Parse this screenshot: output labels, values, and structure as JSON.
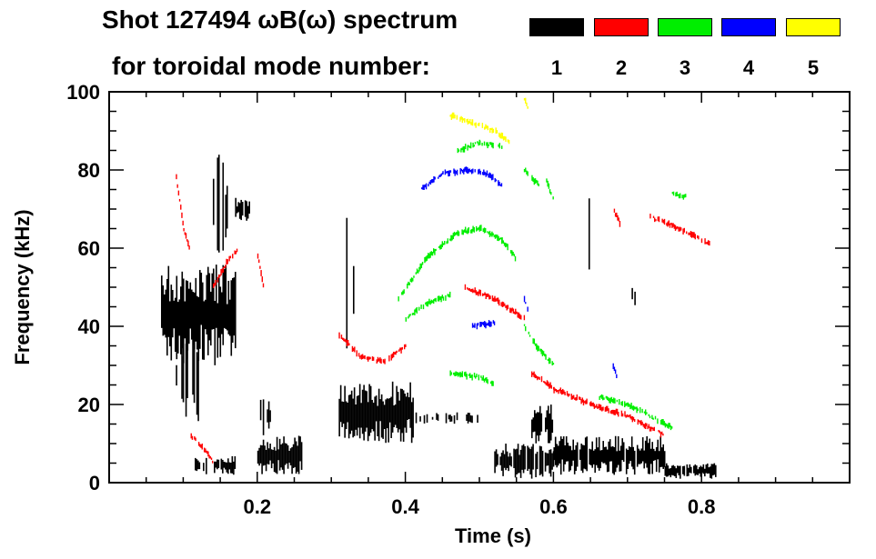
{
  "chart_data": {
    "type": "heatmap",
    "title": "Shot 127494 ωB(ω) spectrum",
    "subtitle": "for toroidal mode number:",
    "xlabel": "Time (s)",
    "ylabel": "Frequency (kHz)",
    "xlim": [
      0,
      1
    ],
    "ylim": [
      0,
      100
    ],
    "xticks": [
      0.2,
      0.4,
      0.6,
      0.8
    ],
    "xtick_labels": [
      "0.2",
      "0.4",
      "0.6",
      "0.8"
    ],
    "yticks": [
      0,
      20,
      40,
      60,
      80,
      100
    ],
    "ytick_labels": [
      "0",
      "20",
      "40",
      "60",
      "80",
      "100"
    ],
    "legend": {
      "placement": "top-right",
      "entries": [
        {
          "label": "1",
          "color": "#000000"
        },
        {
          "label": "2",
          "color": "#ff0000"
        },
        {
          "label": "3",
          "color": "#00ee00"
        },
        {
          "label": "4",
          "color": "#0000ff"
        },
        {
          "label": "5",
          "color": "#ffff00"
        }
      ]
    },
    "modes": [
      {
        "n": 1,
        "color": "#000000",
        "regions": [
          [
            0.07,
            0.17,
            30,
            56,
            0.9
          ],
          [
            0.09,
            0.13,
            15,
            40,
            0.4
          ],
          [
            0.14,
            0.16,
            58,
            84,
            0.5
          ],
          [
            0.17,
            0.19,
            67,
            73,
            0.8
          ],
          [
            0.11,
            0.17,
            2,
            7,
            0.6
          ],
          [
            0.2,
            0.26,
            2,
            12,
            0.9
          ],
          [
            0.2,
            0.22,
            12,
            22,
            0.4
          ],
          [
            0.22,
            0.23,
            25,
            42,
            0.2
          ],
          [
            0.31,
            0.41,
            10,
            26,
            0.9
          ],
          [
            0.32,
            0.33,
            30,
            70,
            0.15
          ],
          [
            0.41,
            0.5,
            15,
            18,
            0.3
          ],
          [
            0.52,
            0.6,
            1,
            10,
            0.8
          ],
          [
            0.57,
            0.6,
            10,
            20,
            0.7
          ],
          [
            0.6,
            0.75,
            2,
            12,
            0.8
          ],
          [
            0.75,
            0.82,
            1,
            5,
            0.8
          ],
          [
            0.64,
            0.65,
            40,
            80,
            0.1
          ],
          [
            0.7,
            0.71,
            45,
            50,
            0.3
          ]
        ]
      },
      {
        "n": 2,
        "color": "#ff0000",
        "lines": [
          [
            [
              0.09,
              78
            ],
            [
              0.1,
              65
            ],
            [
              0.11,
              58
            ]
          ],
          [
            [
              0.14,
              50
            ],
            [
              0.16,
              57
            ],
            [
              0.175,
              60
            ]
          ],
          [
            [
              0.31,
              38
            ],
            [
              0.34,
              32
            ],
            [
              0.37,
              31
            ],
            [
              0.4,
              35
            ]
          ],
          [
            [
              0.48,
              50
            ],
            [
              0.52,
              47
            ],
            [
              0.56,
              42
            ]
          ],
          [
            [
              0.57,
              28
            ],
            [
              0.6,
              24
            ],
            [
              0.65,
              20
            ],
            [
              0.7,
              17
            ],
            [
              0.75,
              12
            ]
          ],
          [
            [
              0.68,
              70
            ],
            [
              0.69,
              66
            ]
          ],
          [
            [
              0.73,
              68
            ],
            [
              0.77,
              65
            ],
            [
              0.81,
              61
            ]
          ],
          [
            [
              0.11,
              12
            ],
            [
              0.13,
              8
            ],
            [
              0.14,
              5
            ]
          ],
          [
            [
              0.2,
              58
            ],
            [
              0.21,
              48
            ]
          ]
        ]
      },
      {
        "n": 3,
        "color": "#00ee00",
        "lines": [
          [
            [
              0.39,
              47
            ],
            [
              0.43,
              58
            ],
            [
              0.47,
              64
            ],
            [
              0.5,
              65
            ],
            [
              0.53,
              62
            ],
            [
              0.55,
              57
            ]
          ],
          [
            [
              0.4,
              42
            ],
            [
              0.43,
              46
            ],
            [
              0.46,
              48
            ]
          ],
          [
            [
              0.47,
              85
            ],
            [
              0.5,
              87
            ],
            [
              0.53,
              86
            ]
          ],
          [
            [
              0.46,
              28
            ],
            [
              0.5,
              27
            ],
            [
              0.52,
              25
            ]
          ],
          [
            [
              0.56,
              80
            ],
            [
              0.58,
              76
            ]
          ],
          [
            [
              0.56,
              40
            ],
            [
              0.58,
              34
            ],
            [
              0.6,
              30
            ]
          ],
          [
            [
              0.66,
              22
            ],
            [
              0.7,
              20
            ],
            [
              0.74,
              16
            ],
            [
              0.76,
              14
            ]
          ],
          [
            [
              0.59,
              77
            ],
            [
              0.6,
              72
            ]
          ],
          [
            [
              0.76,
              74
            ],
            [
              0.78,
              73
            ]
          ]
        ]
      },
      {
        "n": 4,
        "color": "#0000ff",
        "lines": [
          [
            [
              0.42,
              75
            ],
            [
              0.45,
              79
            ],
            [
              0.48,
              80
            ],
            [
              0.51,
              79
            ],
            [
              0.53,
              76
            ]
          ],
          [
            [
              0.49,
              40
            ],
            [
              0.52,
              41
            ]
          ],
          [
            [
              0.56,
              47
            ],
            [
              0.565,
              44
            ]
          ],
          [
            [
              0.68,
              30
            ],
            [
              0.685,
              27
            ]
          ]
        ]
      },
      {
        "n": 5,
        "color": "#ffff00",
        "lines": [
          [
            [
              0.46,
              94
            ],
            [
              0.49,
              92
            ],
            [
              0.52,
              90
            ],
            [
              0.54,
              87
            ]
          ],
          [
            [
              0.56,
              98
            ],
            [
              0.565,
              96
            ]
          ]
        ]
      }
    ]
  }
}
